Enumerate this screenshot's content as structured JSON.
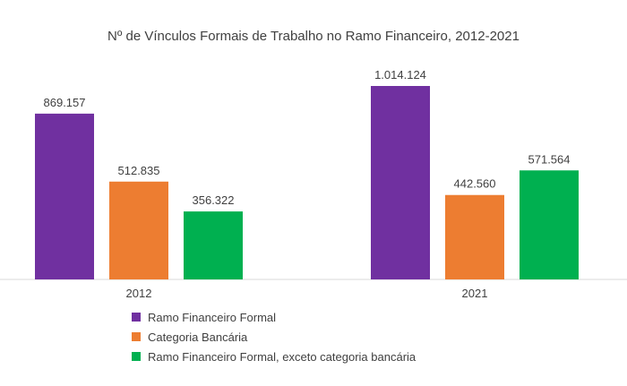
{
  "chart_data": {
    "type": "bar",
    "title": "Nº de Vínculos Formais de Trabalho no Ramo Financeiro, 2012-2021",
    "categories": [
      "2012",
      "2021"
    ],
    "series": [
      {
        "name": "Ramo Financeiro Formal",
        "color": "#7030A0",
        "values": [
          869157,
          1014124
        ],
        "labels": [
          "869.157",
          "1.014.124"
        ]
      },
      {
        "name": "Categoria Bancária",
        "color": "#ED7D31",
        "values": [
          512835,
          442560
        ],
        "labels": [
          "512.835",
          "442.560"
        ]
      },
      {
        "name": "Ramo Financeiro Formal, exceto categoria bancária",
        "color": "#00B050",
        "values": [
          356322,
          571564
        ],
        "labels": [
          "356.322",
          "571.564"
        ]
      }
    ],
    "ylim": [
      0,
      1014124
    ],
    "grid": false,
    "legend_position": "bottom-left"
  }
}
